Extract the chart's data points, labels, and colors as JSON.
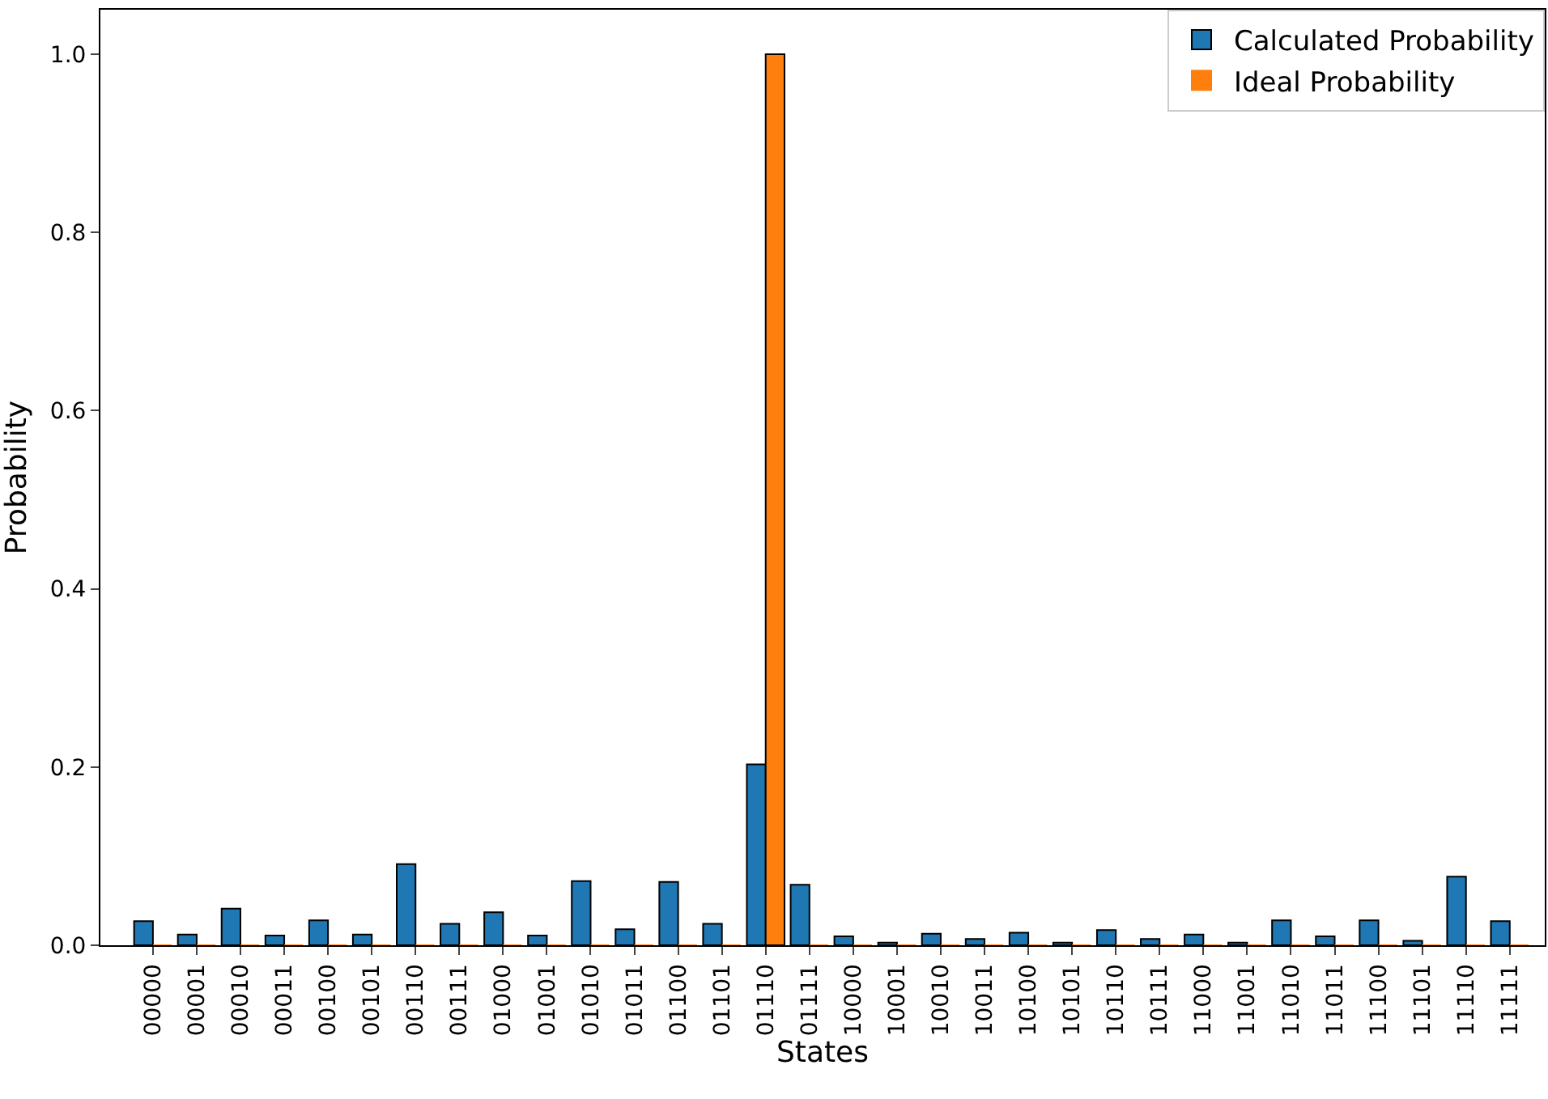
{
  "chart_data": {
    "type": "bar",
    "xlabel": "States",
    "ylabel": "Probability",
    "categories": [
      "00000",
      "00001",
      "00010",
      "00011",
      "00100",
      "00101",
      "00110",
      "00111",
      "01000",
      "01001",
      "01010",
      "01011",
      "01100",
      "01101",
      "01110",
      "01111",
      "10000",
      "10001",
      "10010",
      "10011",
      "10100",
      "10101",
      "10110",
      "10111",
      "11000",
      "11001",
      "11010",
      "11011",
      "11100",
      "11101",
      "11110",
      "11111"
    ],
    "series": [
      {
        "name": "Calculated Probability",
        "color": "#1f77b4",
        "values": [
          0.027,
          0.012,
          0.041,
          0.011,
          0.028,
          0.012,
          0.091,
          0.024,
          0.037,
          0.011,
          0.072,
          0.018,
          0.071,
          0.024,
          0.203,
          0.068,
          0.01,
          0.003,
          0.013,
          0.007,
          0.014,
          0.003,
          0.017,
          0.007,
          0.012,
          0.003,
          0.028,
          0.01,
          0.028,
          0.005,
          0.077,
          0.027
        ]
      },
      {
        "name": "Ideal Probability",
        "color": "#ff7f0e",
        "values": [
          0,
          0,
          0,
          0,
          0,
          0,
          0,
          0,
          0,
          0,
          0,
          0,
          0,
          0,
          1.0,
          0,
          0,
          0,
          0,
          0,
          0,
          0,
          0,
          0,
          0,
          0,
          0,
          0,
          0,
          0,
          0,
          0
        ]
      }
    ],
    "ylim": [
      0,
      1.05
    ],
    "yticks": [
      {
        "value": 0,
        "label": "0.0"
      },
      0.2,
      0.4,
      0.6,
      0.8,
      {
        "value": 1,
        "label": "1.0"
      }
    ],
    "grid": false,
    "legend": "top right"
  }
}
